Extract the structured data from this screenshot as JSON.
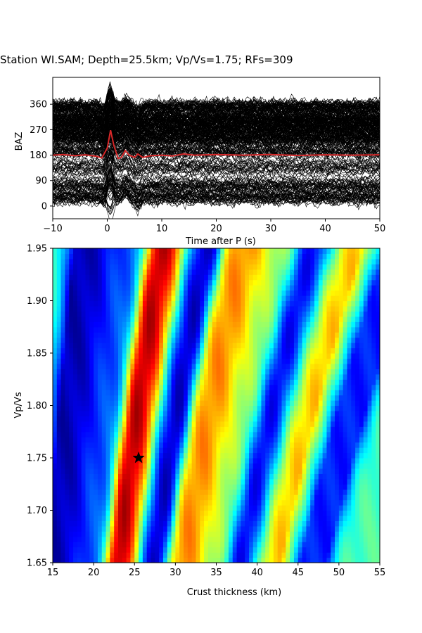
{
  "title": "Station WI.SAM; Depth=25.5km; Vp/Vs=1.75; RFs=309",
  "colors": {
    "trace": "#000000",
    "stack": "#d62728",
    "star": "#000000"
  },
  "chart_data": [
    {
      "type": "line",
      "name": "receiver-functions",
      "xlabel": "Time after P (s)",
      "ylabel": "BAZ",
      "xlim": [
        -10,
        50
      ],
      "ylim": [
        -45,
        455
      ],
      "x_ticks": [
        -10,
        0,
        10,
        20,
        30,
        40,
        50
      ],
      "y_ticks": [
        0,
        90,
        180,
        270,
        360
      ],
      "trace_count": 309,
      "stack_baseline": 180,
      "stack_series": [
        [
          -10,
          180
        ],
        [
          -8,
          182
        ],
        [
          -6,
          178
        ],
        [
          -4,
          181
        ],
        [
          -2,
          176
        ],
        [
          -1,
          170
        ],
        [
          0,
          205
        ],
        [
          0.6,
          268
        ],
        [
          1.2,
          215
        ],
        [
          2,
          168
        ],
        [
          2.6,
          172
        ],
        [
          3.3,
          196
        ],
        [
          4,
          180
        ],
        [
          5,
          172
        ],
        [
          5.6,
          184
        ],
        [
          6.5,
          172
        ],
        [
          8,
          178
        ],
        [
          10,
          180
        ],
        [
          12,
          177
        ],
        [
          14,
          184
        ],
        [
          16,
          180
        ],
        [
          20,
          182
        ],
        [
          25,
          180
        ],
        [
          30,
          182
        ],
        [
          35,
          179
        ],
        [
          40,
          181
        ],
        [
          45,
          180
        ],
        [
          50,
          181
        ]
      ]
    },
    {
      "type": "heatmap",
      "name": "h-kappa-stack",
      "xlabel": "Crust thickness (km)",
      "ylabel": "Vp/Vs",
      "xlim": [
        15,
        55
      ],
      "ylim": [
        1.65,
        1.95
      ],
      "x_ticks": [
        15,
        20,
        25,
        30,
        35,
        40,
        45,
        50,
        55
      ],
      "y_ticks": [
        "1.65",
        "1.70",
        "1.75",
        "1.80",
        "1.85",
        "1.90",
        "1.95"
      ],
      "colormap": "jet",
      "best_fit": {
        "depth": 25.5,
        "vpvs": 1.75
      },
      "ridges_h_at_kappa_175": [
        {
          "h": 25.5,
          "value": 1.0
        },
        {
          "h": 20.5,
          "value": 0.2
        },
        {
          "h": 28.5,
          "value": 0.0
        },
        {
          "h": 33.2,
          "value": 0.75
        },
        {
          "h": 37.0,
          "value": 0.55
        },
        {
          "h": 41.0,
          "value": 0.05
        },
        {
          "h": 44.0,
          "value": 0.7
        },
        {
          "h": 50.0,
          "value": 0.15
        },
        {
          "h": 17.0,
          "value": 0.05
        }
      ]
    }
  ]
}
